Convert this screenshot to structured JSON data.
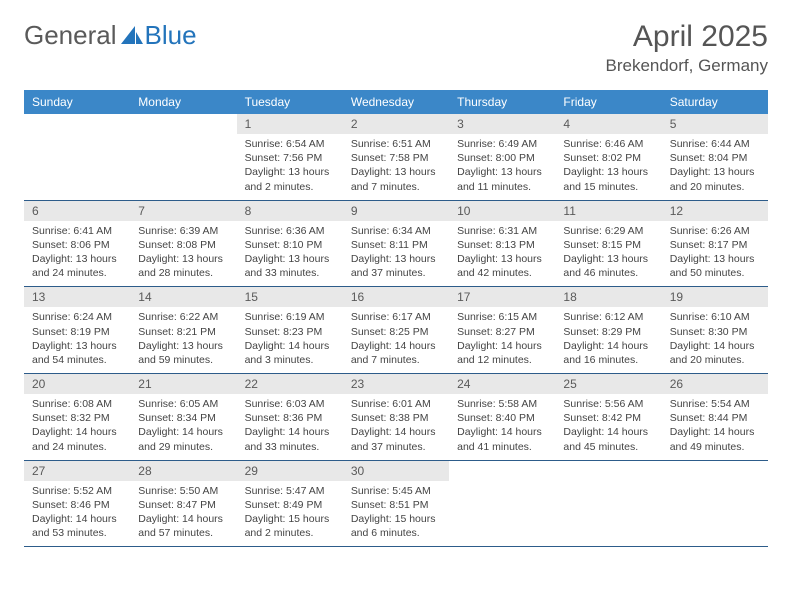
{
  "logo": {
    "part1": "General",
    "part2": "Blue"
  },
  "header": {
    "title": "April 2025",
    "location": "Brekendorf, Germany"
  },
  "colors": {
    "header_bg": "#3b87c8",
    "daynum_bg": "#e8e8e8",
    "row_border": "#2d5c8a",
    "logo_blue": "#2374bb",
    "text": "#444444"
  },
  "weekdays": [
    "Sunday",
    "Monday",
    "Tuesday",
    "Wednesday",
    "Thursday",
    "Friday",
    "Saturday"
  ],
  "layout": {
    "start_weekday_index": 2,
    "days_in_month": 30,
    "cols": 7,
    "rows": 5
  },
  "days": [
    {
      "n": 1,
      "sr": "6:54 AM",
      "ss": "7:56 PM",
      "dl": "13 hours and 2 minutes."
    },
    {
      "n": 2,
      "sr": "6:51 AM",
      "ss": "7:58 PM",
      "dl": "13 hours and 7 minutes."
    },
    {
      "n": 3,
      "sr": "6:49 AM",
      "ss": "8:00 PM",
      "dl": "13 hours and 11 minutes."
    },
    {
      "n": 4,
      "sr": "6:46 AM",
      "ss": "8:02 PM",
      "dl": "13 hours and 15 minutes."
    },
    {
      "n": 5,
      "sr": "6:44 AM",
      "ss": "8:04 PM",
      "dl": "13 hours and 20 minutes."
    },
    {
      "n": 6,
      "sr": "6:41 AM",
      "ss": "8:06 PM",
      "dl": "13 hours and 24 minutes."
    },
    {
      "n": 7,
      "sr": "6:39 AM",
      "ss": "8:08 PM",
      "dl": "13 hours and 28 minutes."
    },
    {
      "n": 8,
      "sr": "6:36 AM",
      "ss": "8:10 PM",
      "dl": "13 hours and 33 minutes."
    },
    {
      "n": 9,
      "sr": "6:34 AM",
      "ss": "8:11 PM",
      "dl": "13 hours and 37 minutes."
    },
    {
      "n": 10,
      "sr": "6:31 AM",
      "ss": "8:13 PM",
      "dl": "13 hours and 42 minutes."
    },
    {
      "n": 11,
      "sr": "6:29 AM",
      "ss": "8:15 PM",
      "dl": "13 hours and 46 minutes."
    },
    {
      "n": 12,
      "sr": "6:26 AM",
      "ss": "8:17 PM",
      "dl": "13 hours and 50 minutes."
    },
    {
      "n": 13,
      "sr": "6:24 AM",
      "ss": "8:19 PM",
      "dl": "13 hours and 54 minutes."
    },
    {
      "n": 14,
      "sr": "6:22 AM",
      "ss": "8:21 PM",
      "dl": "13 hours and 59 minutes."
    },
    {
      "n": 15,
      "sr": "6:19 AM",
      "ss": "8:23 PM",
      "dl": "14 hours and 3 minutes."
    },
    {
      "n": 16,
      "sr": "6:17 AM",
      "ss": "8:25 PM",
      "dl": "14 hours and 7 minutes."
    },
    {
      "n": 17,
      "sr": "6:15 AM",
      "ss": "8:27 PM",
      "dl": "14 hours and 12 minutes."
    },
    {
      "n": 18,
      "sr": "6:12 AM",
      "ss": "8:29 PM",
      "dl": "14 hours and 16 minutes."
    },
    {
      "n": 19,
      "sr": "6:10 AM",
      "ss": "8:30 PM",
      "dl": "14 hours and 20 minutes."
    },
    {
      "n": 20,
      "sr": "6:08 AM",
      "ss": "8:32 PM",
      "dl": "14 hours and 24 minutes."
    },
    {
      "n": 21,
      "sr": "6:05 AM",
      "ss": "8:34 PM",
      "dl": "14 hours and 29 minutes."
    },
    {
      "n": 22,
      "sr": "6:03 AM",
      "ss": "8:36 PM",
      "dl": "14 hours and 33 minutes."
    },
    {
      "n": 23,
      "sr": "6:01 AM",
      "ss": "8:38 PM",
      "dl": "14 hours and 37 minutes."
    },
    {
      "n": 24,
      "sr": "5:58 AM",
      "ss": "8:40 PM",
      "dl": "14 hours and 41 minutes."
    },
    {
      "n": 25,
      "sr": "5:56 AM",
      "ss": "8:42 PM",
      "dl": "14 hours and 45 minutes."
    },
    {
      "n": 26,
      "sr": "5:54 AM",
      "ss": "8:44 PM",
      "dl": "14 hours and 49 minutes."
    },
    {
      "n": 27,
      "sr": "5:52 AM",
      "ss": "8:46 PM",
      "dl": "14 hours and 53 minutes."
    },
    {
      "n": 28,
      "sr": "5:50 AM",
      "ss": "8:47 PM",
      "dl": "14 hours and 57 minutes."
    },
    {
      "n": 29,
      "sr": "5:47 AM",
      "ss": "8:49 PM",
      "dl": "15 hours and 2 minutes."
    },
    {
      "n": 30,
      "sr": "5:45 AM",
      "ss": "8:51 PM",
      "dl": "15 hours and 6 minutes."
    }
  ],
  "labels": {
    "sunrise": "Sunrise:",
    "sunset": "Sunset:",
    "daylight": "Daylight:"
  }
}
